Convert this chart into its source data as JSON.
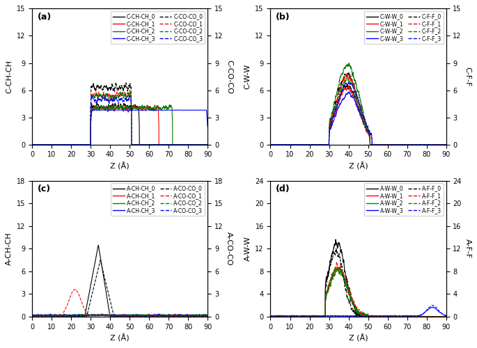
{
  "colors": [
    "black",
    "red",
    "green",
    "blue"
  ],
  "xlim": [
    0,
    90
  ],
  "xlabel": "Z (Å)",
  "subplots": [
    {
      "label": "(a)",
      "ylabel_left": "C-CH-CH",
      "ylabel_right": "C-CO-CO",
      "ylim_left": [
        0,
        15
      ],
      "ylim_right": [
        0,
        15
      ],
      "yticks_left": [
        0,
        3,
        6,
        9,
        12,
        15
      ],
      "yticks_right": [
        0,
        3,
        6,
        9,
        12,
        15
      ],
      "legend_solid": [
        "C-CH-CH_0",
        "C-CH-CH_1",
        "C-CH-CH_2",
        "C-CH-CH_3"
      ],
      "legend_dashed": [
        "C-CO-CO_0",
        "C-CO-CO_1",
        "C-CO-CO_2",
        "C-CO-CO_3"
      ]
    },
    {
      "label": "(b)",
      "ylabel_left": "C-W-W",
      "ylabel_right": "C-F-F",
      "ylim_left": [
        0,
        15
      ],
      "ylim_right": [
        0,
        15
      ],
      "yticks_left": [
        0,
        3,
        6,
        9,
        12,
        15
      ],
      "yticks_right": [
        0,
        3,
        6,
        9,
        12,
        15
      ],
      "legend_solid": [
        "C-W-W_0",
        "C-W-W_1",
        "C-W-W_2",
        "C-W-W_3"
      ],
      "legend_dashed": [
        "C-F-F_0",
        "C-F-F_1",
        "C-F-F_2",
        "C-F-F_3"
      ]
    },
    {
      "label": "(c)",
      "ylabel_left": "A-CH-CH",
      "ylabel_right": "A-CO-CO",
      "ylim_left": [
        0,
        18
      ],
      "ylim_right": [
        0,
        18
      ],
      "yticks_left": [
        0,
        3,
        6,
        9,
        12,
        15,
        18
      ],
      "yticks_right": [
        0,
        3,
        6,
        9,
        12,
        15,
        18
      ],
      "legend_solid": [
        "A-CH-CH_0",
        "A-CH-CH_1",
        "A-CH-CH_2",
        "A-CH-CH_3"
      ],
      "legend_dashed": [
        "A-CO-CO_0",
        "A-CO-CO_1",
        "A-CO-CO_2",
        "A-CO-CO_3"
      ]
    },
    {
      "label": "(d)",
      "ylabel_left": "A-W-W",
      "ylabel_right": "A-F-F",
      "ylim_left": [
        0,
        24
      ],
      "ylim_right": [
        0,
        24
      ],
      "yticks_left": [
        0,
        4,
        8,
        12,
        16,
        20,
        24
      ],
      "yticks_right": [
        0,
        4,
        8,
        12,
        16,
        20,
        24
      ],
      "legend_solid": [
        "A-W-W_0",
        "A-W-W_1",
        "A-W-W_2",
        "A-W-W_3"
      ],
      "legend_dashed": [
        "A-F-F_0",
        "A-F-F_1",
        "A-F-F_2",
        "A-F-F_3"
      ]
    }
  ]
}
